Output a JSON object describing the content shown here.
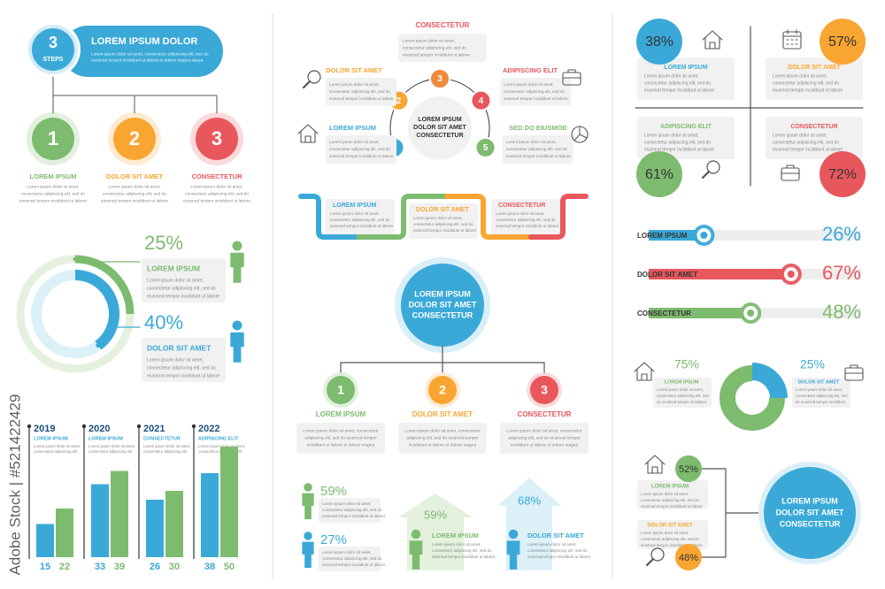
{
  "watermark": "Adobe Stock | #521422429",
  "steps": {
    "badge_number": "3",
    "badge_label": "STEPS",
    "title": "LOREM IPSUM DOLOR",
    "body": [
      "Lorem ipsum dolor sit amet, consectetur adipiscing elit, sed do",
      "eiusmod tempor incididunt ut labore et dolore magna aliqua"
    ],
    "items": [
      {
        "number": "1",
        "title": "LOREM IPSUM",
        "body": [
          "Lorem ipsum dolor sit amet,",
          "consectetur adipiscing elit, sed do",
          "eiusmod tempor incididunt ut labore"
        ]
      },
      {
        "number": "2",
        "title": "DOLOR SIT AMET",
        "body": [
          "Lorem ipsum dolor sit amet,",
          "consectetur adipiscing elit, sed do",
          "eiusmod tempor incididunt ut labore"
        ]
      },
      {
        "number": "3",
        "title": "CONSECTETUR",
        "body": [
          "Lorem ipsum dolor sit amet,",
          "consectetur adipiscing elit, sed do",
          "eiusmod tempor incididunt ut labore"
        ]
      }
    ]
  },
  "rings": {
    "items": [
      {
        "percent": 25,
        "percent_label": "25%",
        "title": "LOREM IPSUM",
        "body": [
          "Lorem ipsum dolor sit amet,",
          "consectetur adipiscing elit, sed do",
          "eiusmod tempor incididunt ut labore"
        ]
      },
      {
        "percent": 40,
        "percent_label": "40%",
        "title": "DOLOR SIT AMET",
        "body": [
          "Lorem ipsum dolor sit amet,",
          "consectetur adipiscing elit, sed do",
          "eiusmod tempor incididunt ut labore"
        ]
      }
    ]
  },
  "bars": {
    "groups": [
      {
        "year": "2019",
        "title": "LOREM IPSUM",
        "body": [
          "Lorem ipsum dolor sit amet,",
          "consectetur adipiscing elit"
        ],
        "values": [
          15,
          22
        ]
      },
      {
        "year": "2020",
        "title": "LOREM IPSUM",
        "body": [
          "Lorem ipsum dolor sit amet,",
          "consectetur adipiscing elit"
        ],
        "values": [
          33,
          39
        ]
      },
      {
        "year": "2021",
        "title": "CONSECTETUR",
        "body": [
          "Lorem ipsum dolor sit amet,",
          "consectetur adipiscing elit"
        ],
        "values": [
          26,
          30
        ]
      },
      {
        "year": "2022",
        "title": "ADIPISCING ELIT",
        "body": [
          "Lorem ipsum dolor sit amet,",
          "consectetur adipiscing elit"
        ],
        "values": [
          38,
          50
        ]
      }
    ]
  },
  "cycle": {
    "center": [
      "LOREM IPSUM",
      "DOLOR SIT AMET",
      "CONSECTETUR"
    ],
    "top": {
      "title": "CONSECTETUR",
      "body": [
        "Lorem ipsum dolor sit amet,",
        "consectetur adipiscing elit, sed do",
        "eiusmod tempor incididunt ut labore"
      ]
    },
    "steps": [
      "1",
      "2",
      "3",
      "4",
      "5"
    ],
    "items": [
      {
        "title": "DOLOR SIT AMET",
        "body": [
          "Lorem ipsum dolor sit amet,",
          "consectetur adipiscing elit, sed do",
          "eiusmod tempor incididunt ut labore"
        ]
      },
      {
        "title": "ADIPISCING ELIT",
        "body": [
          "Lorem ipsum dolor sit amet,",
          "consectetur adipiscing elit, sed do",
          "eiusmod tempor incididunt ut labore"
        ]
      },
      {
        "title": "LOREM IPSUM",
        "body": [
          "Lorem ipsum dolor sit amet,",
          "consectetur adipiscing elit, sed do",
          "eiusmod tempor incididunt ut labore"
        ]
      },
      {
        "title": "SED DO EIUSMOD",
        "body": [
          "Lorem ipsum dolor sit amet,",
          "consectetur adipiscing elit, sed do",
          "eiusmod tempor incididunt ut labore"
        ]
      }
    ]
  },
  "timeline": {
    "items": [
      {
        "title": "LOREM IPSUM",
        "body": [
          "Lorem ipsum dolor sit amet,",
          "consectetur adipiscing elit, sed do",
          "eiusmod tempor incididunt ut labore"
        ]
      },
      {
        "title": "DOLOR SIT AMET",
        "body": [
          "Lorem ipsum dolor sit amet,",
          "consectetur adipiscing elit, sed do",
          "eiusmod tempor incididunt ut labore"
        ]
      },
      {
        "title": "CONSECTETUR",
        "body": [
          "Lorem ipsum dolor sit amet,",
          "consectetur adipiscing elit, sed do",
          "eiusmod tempor incididunt ut labore"
        ]
      }
    ]
  },
  "tree": {
    "center": [
      "LOREM IPSUM",
      "DOLOR SIT AMET",
      "CONSECTETUR"
    ],
    "items": [
      {
        "number": "1",
        "title": "LOREM IPSUM",
        "body": [
          "Lorem ipsum dolor sit amet, consectetur",
          "adipiscing elit, sed do eiusmod tempor",
          "incididunt ut labore et dolore magna"
        ]
      },
      {
        "number": "2",
        "title": "DOLOR SIT AMET",
        "body": [
          "Lorem ipsum dolor sit amet, consectetur",
          "adipiscing elit, sed do eiusmod tempor",
          "incididunt ut labore et dolore magna"
        ]
      },
      {
        "number": "3",
        "title": "CONSECTETUR",
        "body": [
          "Lorem ipsum dolor sit amet, consectetur",
          "adipiscing elit, sed do eiusmod tempor",
          "incididunt ut labore et dolore magna"
        ]
      }
    ]
  },
  "people": {
    "items": [
      {
        "percent": "59%",
        "body": [
          "Lorem ipsum dolor sit amet,",
          "consectetur adipiscing elit, sed do",
          "eiusmod tempor incididunt ut labore"
        ]
      },
      {
        "percent": "27%",
        "body": [
          "Lorem ipsum dolor sit amet,",
          "consectetur adipiscing elit, sed do",
          "eiusmod tempor incididunt ut labore"
        ]
      }
    ]
  },
  "arrows": {
    "items": [
      {
        "percent": "59%",
        "title": "LOREM IPSUM",
        "body": [
          "Lorem ipsum dolor sit amet,",
          "consectetur adipiscing elit, sed do",
          "eiusmod tempor incididunt ut labore"
        ]
      },
      {
        "percent": "68%",
        "title": "DOLOR SIT AMET",
        "body": [
          "Lorem ipsum dolor sit amet,",
          "consectetur adipiscing elit, sed do",
          "eiusmod tempor incididunt ut labore"
        ]
      }
    ]
  },
  "quad": {
    "items": [
      {
        "percent": "38%",
        "title": "LOREM IPSUM",
        "body": [
          "Lorem ipsum dolor sit amet,",
          "consectetur adipiscing elit, sed do",
          "eiusmod tempor incididunt ut labore"
        ]
      },
      {
        "percent": "57%",
        "title": "DOLOR SIT AMET",
        "body": [
          "Lorem ipsum dolor sit amet,",
          "consectetur adipiscing elit, sed do",
          "eiusmod tempor incididunt ut labore"
        ]
      },
      {
        "percent": "61%",
        "title": "ADIPISCING ELIT",
        "body": [
          "Lorem ipsum dolor sit amet,",
          "consectetur adipiscing elit, sed do",
          "eiusmod tempor incididunt ut labore"
        ]
      },
      {
        "percent": "72%",
        "title": "CONSECTETUR",
        "body": [
          "Lorem ipsum dolor sit amet,",
          "consectetur adipiscing elit, sed do",
          "eiusmod tempor incididunt ut labore"
        ]
      }
    ]
  },
  "progress": {
    "items": [
      {
        "label": "LOREM IPSUM",
        "percent": 26,
        "percent_label": "26%"
      },
      {
        "label": "DOLOR SIT AMET",
        "percent": 67,
        "percent_label": "67%"
      },
      {
        "label": "CONSECTETUR",
        "percent": 48,
        "percent_label": "48%"
      }
    ]
  },
  "pie": {
    "items": [
      {
        "percent": 75,
        "percent_label": "75%",
        "title": "LOREM IPSUM",
        "body": [
          "Lorem ipsum dolor sit amet,",
          "consectetur adipiscing elit, sed",
          "do eiusmod tempor incididunt"
        ]
      },
      {
        "percent": 25,
        "percent_label": "25%",
        "title": "DOLOR SIT AMET",
        "body": [
          "Lorem ipsum dolor sit amet,",
          "consectetur adipiscing elit, sed",
          "do eiusmod tempor incididunt"
        ]
      }
    ]
  },
  "branch": {
    "center": [
      "LOREM IPSUM",
      "DOLOR SIT AMET",
      "CONSECTETUR"
    ],
    "items": [
      {
        "percent": "52%",
        "title": "LOREM IPSUM",
        "body": [
          "Lorem ipsum dolor sit amet,",
          "consectetur adipiscing elit, sed do",
          "eiusmod tempor incididunt ut labore"
        ]
      },
      {
        "percent": "48%",
        "title": "DOLOR SIT AMET",
        "body": [
          "Lorem ipsum dolor sit amet,",
          "consectetur adipiscing elit, sed do",
          "eiusmod tempor incididunt ut labore"
        ]
      }
    ]
  }
}
